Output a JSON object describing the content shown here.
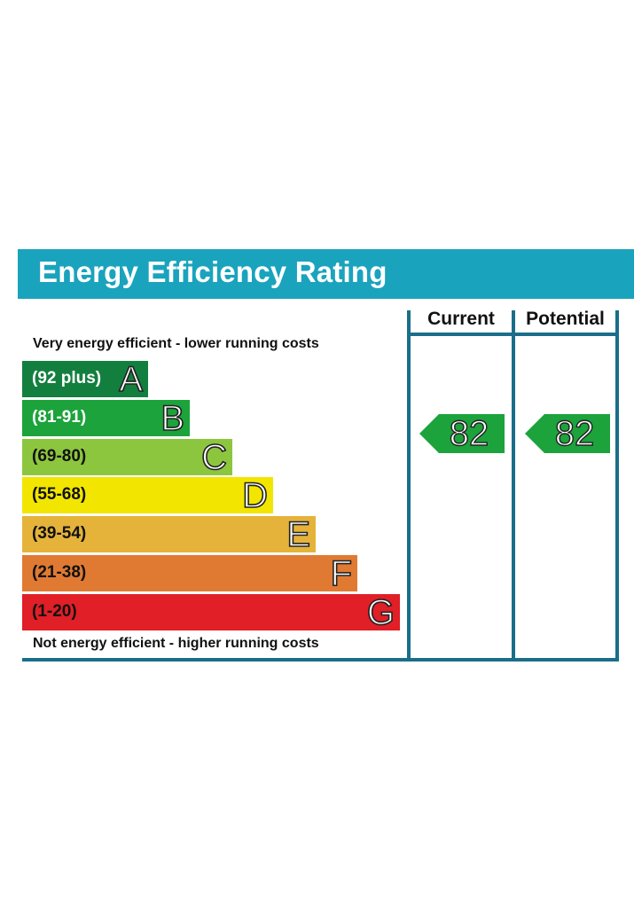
{
  "title": "Energy Efficiency Rating",
  "captions": {
    "top": "Very energy efficient - lower running costs",
    "bottom": "Not energy efficient - higher running costs"
  },
  "columns": {
    "current": "Current",
    "potential": "Potential"
  },
  "chart_data": {
    "type": "bar",
    "categories": [
      "A",
      "B",
      "C",
      "D",
      "E",
      "F",
      "G"
    ],
    "ranges": [
      "(92 plus)",
      "(81-91)",
      "(69-80)",
      "(55-68)",
      "(39-54)",
      "(21-38)",
      "(1-20)"
    ],
    "colors": [
      "#137f3f",
      "#1ca33b",
      "#8cc63f",
      "#f2e600",
      "#e5b33a",
      "#e07a33",
      "#e01f26"
    ],
    "range_text_colors": [
      "#ffffff",
      "#ffffff",
      "#111111",
      "#111111",
      "#111111",
      "#111111",
      "#111111"
    ],
    "current": 82,
    "potential": 82,
    "arrow_color": "#1ca33b"
  }
}
